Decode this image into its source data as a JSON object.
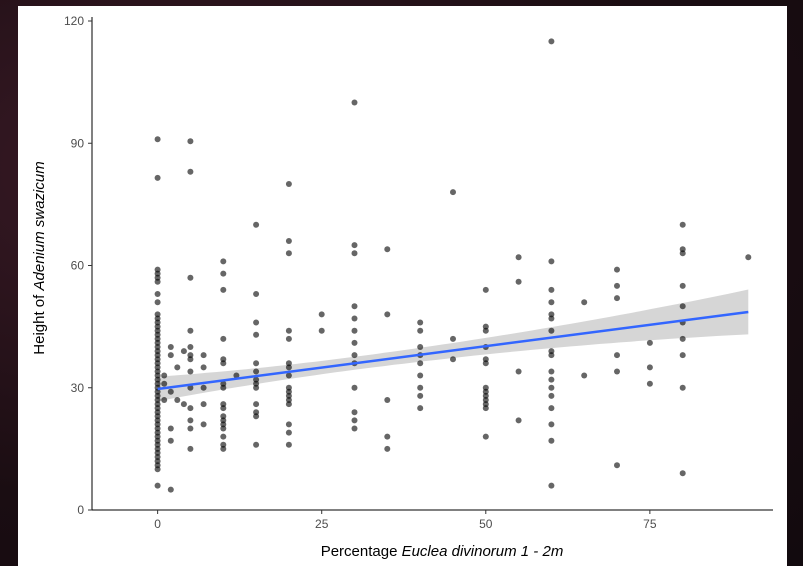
{
  "chart_data": {
    "type": "scatter",
    "title": "",
    "xlabel_plain": "Percentage ",
    "xlabel_italic": "Euclea divinorum 1 - 2m",
    "ylabel_plain": "Height of ",
    "ylabel_italic": "Adenium swazicum",
    "xlim": [
      -10,
      93
    ],
    "ylim": [
      0,
      120
    ],
    "xticks": [
      0,
      25,
      50,
      75
    ],
    "yticks": [
      0,
      30,
      60,
      90,
      120
    ],
    "grid": false,
    "colors": {
      "points": "#000000",
      "line": "#3366ff",
      "band": "#cccccc"
    },
    "trend": {
      "intercept": 29.7,
      "slope": 0.21,
      "x_range": [
        0,
        90
      ],
      "ci_halfwidth_ends": [
        3.0,
        5.5
      ],
      "ci_halfwidth_mid": 1.6,
      "ci_mid_x": 30
    },
    "series": [
      {
        "x": 0,
        "y": [
          91,
          81.5,
          59,
          58,
          57,
          56,
          53,
          51,
          48,
          47,
          46,
          45,
          44,
          43,
          42,
          41,
          40,
          39,
          38,
          37,
          36,
          35,
          34,
          33,
          32,
          31,
          30,
          29,
          28,
          27,
          26,
          25,
          24,
          23,
          22,
          21,
          20,
          19,
          18,
          17,
          16,
          15,
          14,
          13,
          12,
          11,
          10,
          6
        ]
      },
      {
        "x": 1,
        "y": [
          33,
          31,
          27
        ]
      },
      {
        "x": 2,
        "y": [
          40,
          38,
          29,
          20,
          17,
          5
        ]
      },
      {
        "x": 3,
        "y": [
          35,
          27
        ]
      },
      {
        "x": 4,
        "y": [
          39,
          26
        ]
      },
      {
        "x": 5,
        "y": [
          90.5,
          83,
          57,
          44,
          40,
          38,
          37,
          34,
          30,
          25,
          22,
          20,
          15
        ]
      },
      {
        "x": 7,
        "y": [
          38,
          35,
          30,
          26,
          21
        ]
      },
      {
        "x": 10,
        "y": [
          61,
          58,
          54,
          42,
          37,
          36,
          31,
          30,
          26,
          25,
          23,
          22,
          21,
          20,
          18,
          16,
          15
        ]
      },
      {
        "x": 12,
        "y": [
          33
        ]
      },
      {
        "x": 15,
        "y": [
          70,
          53,
          46,
          43,
          36,
          34,
          32,
          31,
          30,
          26,
          24,
          23,
          16
        ]
      },
      {
        "x": 20,
        "y": [
          80,
          66,
          63,
          44,
          42,
          36,
          35,
          33,
          30,
          29,
          28,
          27,
          26,
          21,
          19,
          16
        ]
      },
      {
        "x": 25,
        "y": [
          48,
          44
        ]
      },
      {
        "x": 30,
        "y": [
          100,
          65,
          63,
          50,
          47,
          44,
          41,
          38,
          36,
          30,
          24,
          22,
          20
        ]
      },
      {
        "x": 35,
        "y": [
          64,
          48,
          27,
          18,
          15
        ]
      },
      {
        "x": 40,
        "y": [
          46,
          44,
          40,
          38,
          36,
          33,
          30,
          28,
          25
        ]
      },
      {
        "x": 45,
        "y": [
          78,
          42,
          37
        ]
      },
      {
        "x": 50,
        "y": [
          54,
          45,
          44,
          40,
          37,
          36,
          30,
          29,
          28,
          27,
          26,
          25,
          18
        ]
      },
      {
        "x": 55,
        "y": [
          62,
          56,
          34,
          22
        ]
      },
      {
        "x": 60,
        "y": [
          115,
          61,
          54,
          51,
          48,
          47,
          44,
          39,
          38,
          34,
          32,
          30,
          28,
          25,
          21,
          17,
          6
        ]
      },
      {
        "x": 65,
        "y": [
          51,
          33
        ]
      },
      {
        "x": 70,
        "y": [
          59,
          55,
          52,
          38,
          34,
          11
        ]
      },
      {
        "x": 75,
        "y": [
          41,
          35,
          31
        ]
      },
      {
        "x": 80,
        "y": [
          70,
          64,
          63,
          55,
          50,
          46,
          42,
          38,
          30,
          9
        ]
      },
      {
        "x": 90,
        "y": [
          62
        ]
      }
    ]
  }
}
